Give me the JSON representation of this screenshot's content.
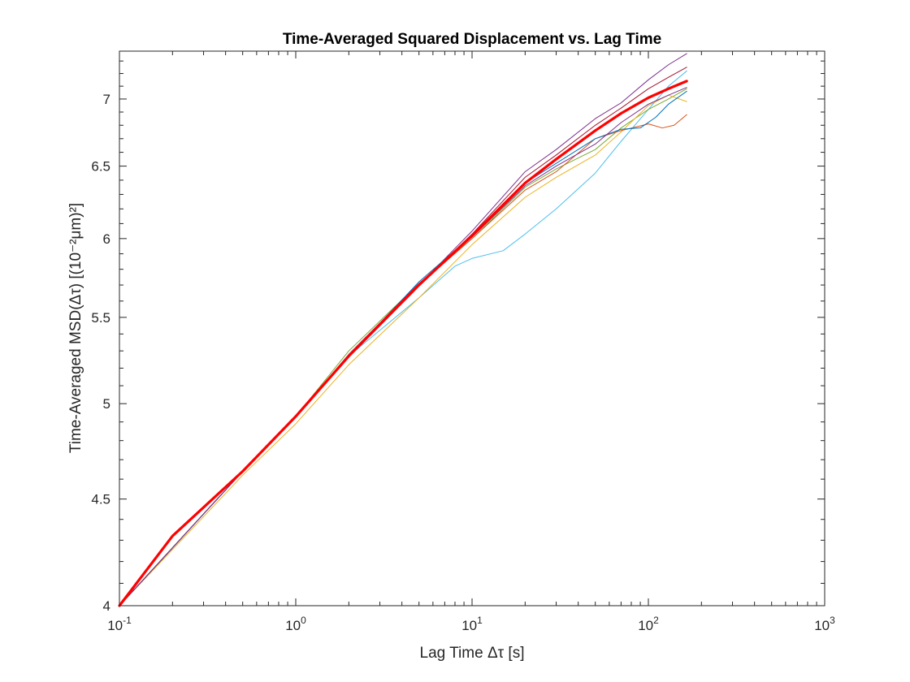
{
  "chart_data": {
    "type": "line",
    "title": "Time-Averaged Squared Displacement vs. Lag Time",
    "xlabel": "Lag Time Δτ [s]",
    "ylabel": "Time-Averaged MSD(Δτ) [(10⁻²μm)²]",
    "xscale": "log",
    "yscale": "log",
    "xlim": [
      0.1,
      1000
    ],
    "ylim": [
      4.0,
      7.38
    ],
    "xticks": [
      {
        "value": 0.1,
        "base": "10",
        "exp": "-1"
      },
      {
        "value": 1,
        "base": "10",
        "exp": "0"
      },
      {
        "value": 10,
        "base": "10",
        "exp": "1"
      },
      {
        "value": 100,
        "base": "10",
        "exp": "2"
      },
      {
        "value": 1000,
        "base": "10",
        "exp": "3"
      }
    ],
    "yticks": [
      {
        "value": 4,
        "label": "4"
      },
      {
        "value": 4.5,
        "label": "4.5"
      },
      {
        "value": 5,
        "label": "5"
      },
      {
        "value": 5.5,
        "label": "5.5"
      },
      {
        "value": 6,
        "label": "6"
      },
      {
        "value": 6.5,
        "label": "6.5"
      },
      {
        "value": 7,
        "label": "7"
      }
    ],
    "grid": false,
    "legend": "none",
    "series": [
      {
        "color": "#7E2F8E",
        "width": 1,
        "x": [
          0.1,
          0.5,
          1,
          2,
          5,
          10,
          20,
          30,
          50,
          70,
          100,
          130,
          165
        ],
        "y": [
          4.0,
          4.64,
          4.93,
          5.27,
          5.7,
          6.05,
          6.46,
          6.62,
          6.85,
          6.97,
          7.15,
          7.27,
          7.36
        ]
      },
      {
        "color": "#A2142F",
        "width": 1,
        "x": [
          0.1,
          0.5,
          1,
          2,
          5,
          10,
          20,
          30,
          50,
          70,
          100,
          130,
          165
        ],
        "y": [
          4.0,
          4.64,
          4.93,
          5.27,
          5.7,
          6.03,
          6.42,
          6.58,
          6.8,
          6.93,
          7.08,
          7.17,
          7.25
        ]
      },
      {
        "color": "#4DBEEE",
        "width": 1,
        "x": [
          0.1,
          0.5,
          1,
          2,
          5,
          8,
          10,
          15,
          20,
          30,
          50,
          70,
          100,
          130,
          165
        ],
        "y": [
          4.0,
          4.64,
          4.93,
          5.27,
          5.62,
          5.82,
          5.87,
          5.92,
          6.03,
          6.2,
          6.45,
          6.68,
          6.92,
          7.1,
          7.22
        ]
      },
      {
        "color": "#77AC30",
        "width": 1,
        "x": [
          0.1,
          0.5,
          1,
          2,
          5,
          10,
          20,
          30,
          50,
          70,
          100,
          130,
          165
        ],
        "y": [
          4.0,
          4.64,
          4.93,
          5.3,
          5.71,
          6.0,
          6.35,
          6.48,
          6.62,
          6.78,
          6.92,
          7.0,
          7.08
        ]
      },
      {
        "color": "#EDB120",
        "width": 1,
        "x": [
          0.1,
          0.5,
          1,
          2,
          5,
          10,
          20,
          30,
          50,
          70,
          100,
          130,
          165
        ],
        "y": [
          4.0,
          4.62,
          4.89,
          5.22,
          5.62,
          5.96,
          6.28,
          6.42,
          6.58,
          6.75,
          6.95,
          7.03,
          6.98
        ]
      },
      {
        "color": "#D95319",
        "width": 1,
        "x": [
          0.1,
          0.5,
          1,
          2,
          5,
          10,
          20,
          30,
          50,
          70,
          100,
          120,
          140,
          165
        ],
        "y": [
          4.0,
          4.64,
          4.93,
          5.27,
          5.7,
          6.0,
          6.33,
          6.46,
          6.7,
          6.76,
          6.81,
          6.78,
          6.8,
          6.88
        ]
      },
      {
        "color": "#0072BD",
        "width": 1,
        "x": [
          0.1,
          0.5,
          1,
          2,
          5,
          10,
          20,
          30,
          50,
          70,
          90,
          110,
          130,
          165
        ],
        "y": [
          4.0,
          4.64,
          4.93,
          5.27,
          5.72,
          6.02,
          6.38,
          6.52,
          6.7,
          6.77,
          6.78,
          6.86,
          6.96,
          7.06
        ]
      },
      {
        "color": "#7E2F8E",
        "width": 1,
        "x": [
          0.1,
          0.5,
          1,
          2,
          5,
          10,
          20,
          30,
          50,
          70,
          100,
          130,
          165
        ],
        "y": [
          4.0,
          4.64,
          4.93,
          5.28,
          5.71,
          6.01,
          6.36,
          6.5,
          6.66,
          6.82,
          6.96,
          7.03,
          7.09
        ]
      },
      {
        "color": "#FF0000",
        "width": 3.2,
        "x": [
          0.1,
          0.2,
          0.5,
          1,
          2,
          5,
          10,
          20,
          30,
          50,
          70,
          100,
          130,
          165
        ],
        "y": [
          4.0,
          4.32,
          4.64,
          4.93,
          5.27,
          5.7,
          6.02,
          6.38,
          6.55,
          6.76,
          6.89,
          7.01,
          7.08,
          7.14
        ]
      }
    ]
  }
}
